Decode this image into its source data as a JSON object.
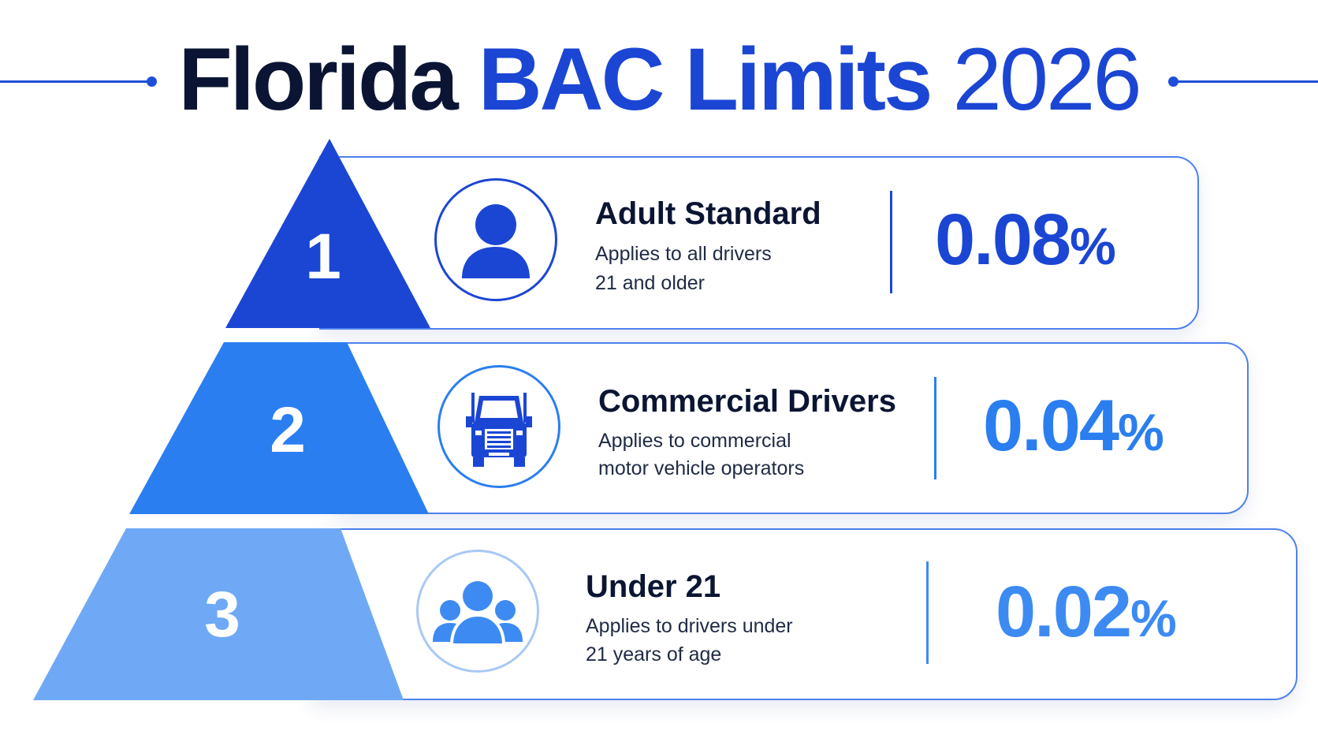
{
  "title": {
    "part1": "Florida",
    "part2": "BAC Limits",
    "part3": "2026"
  },
  "colors": {
    "navy": "#0b1533",
    "blue_dark": "#1b46d4",
    "blue_mid": "#2a7ef0",
    "blue_light": "#6fa9f5"
  },
  "tiers": [
    {
      "number": "1",
      "heading": "Adult Standard",
      "desc_line1": "Applies to all drivers",
      "desc_line2": "21 and older",
      "value": "0.08",
      "unit": "%",
      "icon": "person-icon"
    },
    {
      "number": "2",
      "heading": "Commercial Drivers",
      "desc_line1": "Applies to commercial",
      "desc_line2": "motor vehicle operators",
      "value": "0.04",
      "unit": "%",
      "icon": "truck-icon"
    },
    {
      "number": "3",
      "heading": "Under 21",
      "desc_line1": "Applies to drivers under",
      "desc_line2": "21 years of age",
      "value": "0.02",
      "unit": "%",
      "icon": "group-icon"
    }
  ]
}
